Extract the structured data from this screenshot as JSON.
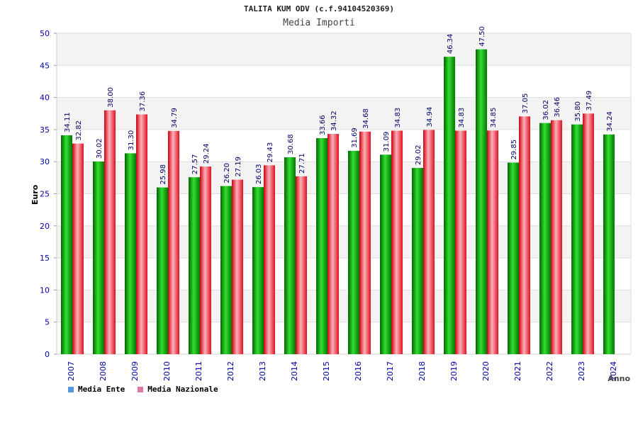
{
  "title": "TALITA KUM ODV (c.f.94104520369)",
  "subtitle": "Media Importi",
  "legend": {
    "series1": "Media Ente",
    "series2": "Media Nazionale"
  },
  "colors": {
    "series1": "#00aa00",
    "series2": "#ee2233",
    "legend1": "#5599dd",
    "legend2": "#dd77aa"
  },
  "chart_data": {
    "type": "bar",
    "title": "TALITA KUM ODV (c.f.94104520369)",
    "subtitle": "Media Importi",
    "xlabel": "Anno",
    "ylabel": "Euro",
    "ylim": [
      0,
      50
    ],
    "yticks": [
      0,
      5,
      10,
      15,
      20,
      25,
      30,
      35,
      40,
      45,
      50
    ],
    "grid": true,
    "legend_position": "bottom-left",
    "categories": [
      "2007",
      "2008",
      "2009",
      "2010",
      "2011",
      "2012",
      "2013",
      "2014",
      "2015",
      "2016",
      "2017",
      "2018",
      "2019",
      "2020",
      "2021",
      "2022",
      "2023",
      "2024"
    ],
    "series": [
      {
        "name": "Media Ente",
        "values": [
          34.11,
          30.02,
          31.3,
          25.98,
          27.57,
          26.2,
          26.03,
          30.68,
          33.66,
          31.69,
          31.09,
          29.02,
          46.34,
          47.5,
          29.85,
          36.02,
          35.8,
          34.24
        ],
        "labels": [
          "34.11",
          "30.02",
          "31.30",
          "25.98",
          "27.57",
          "26.20",
          "26.03",
          "30.68",
          "33.66",
          "31.69",
          "31.09",
          "29.02",
          "46.34",
          "47.50",
          "29.85",
          "36.02",
          "35.80",
          "34.24"
        ]
      },
      {
        "name": "Media Nazionale",
        "values": [
          32.82,
          38.0,
          37.36,
          34.79,
          29.24,
          27.19,
          29.43,
          27.71,
          34.32,
          34.68,
          34.83,
          34.94,
          34.83,
          34.85,
          37.05,
          36.46,
          37.49,
          null
        ],
        "labels": [
          "32.82",
          "38.00",
          "37.36",
          "34.79",
          "29.24",
          "27.19",
          "29.43",
          "27.71",
          "34.32",
          "34.68",
          "34.83",
          "34.94",
          "34.83",
          "34.85",
          "37.05",
          "36.46",
          "37.49",
          null
        ]
      }
    ]
  }
}
